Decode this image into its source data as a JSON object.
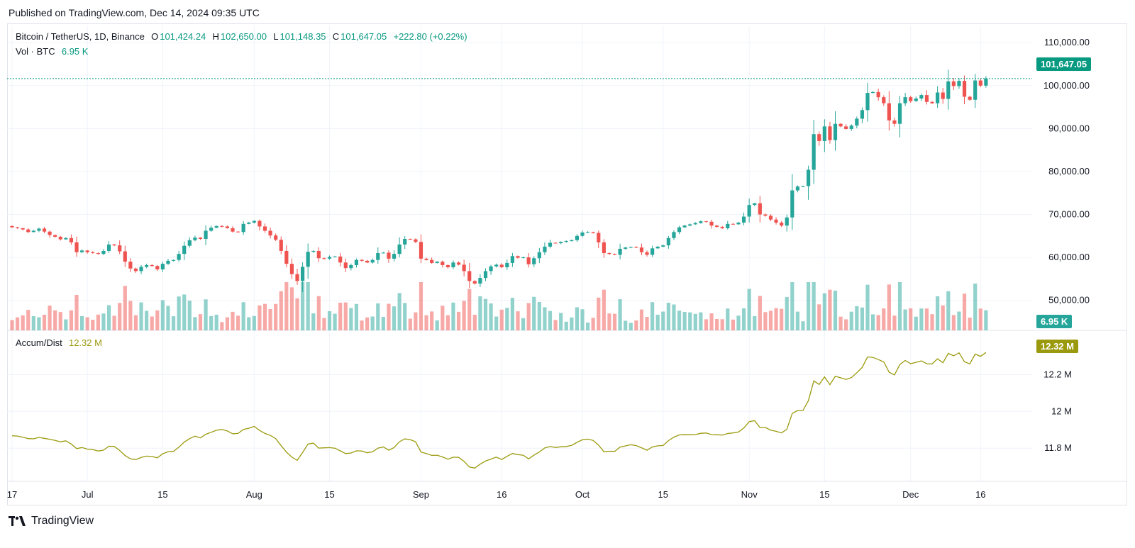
{
  "header": {
    "published": "Published on TradingView.com, Dec 14, 2024 09:35 UTC"
  },
  "legend": {
    "symbol": "Bitcoin / TetherUS, 1D, Binance",
    "o_label": "O",
    "o_value": "101,424.24",
    "h_label": "H",
    "h_value": "102,650.00",
    "l_label": "L",
    "l_value": "101,148.35",
    "c_label": "C",
    "c_value": "101,647.05",
    "change": "+222.80 (+0.22%)",
    "vol_label": "Vol · BTC",
    "vol_value": "6.95 K",
    "ad_label": "Accum/Dist",
    "ad_value": "12.32 M"
  },
  "tags": {
    "price": "101,647.05",
    "volume": "6.95 K",
    "ad": "12.32 M"
  },
  "footer": {
    "brand": "TradingView"
  },
  "colors": {
    "up": "#26a69a",
    "down": "#ef5350",
    "ad_line": "#9b9a0e",
    "grid": "#f0f3fa"
  },
  "chart_data": [
    {
      "type": "candlestick",
      "title": "Bitcoin / TetherUS, 1D, Binance",
      "price_axis_ticks": [
        "110,000.00",
        "100,000.00",
        "90,000.00",
        "80,000.00",
        "70,000.00",
        "60,000.00",
        "50,000.00"
      ],
      "price_axis_values": [
        110000,
        100000,
        90000,
        80000,
        70000,
        60000,
        50000
      ],
      "ylim": [
        43000,
        114000
      ],
      "x_ticks": [
        "17",
        "Jul",
        "15",
        "Aug",
        "15",
        "Sep",
        "16",
        "Oct",
        "15",
        "Nov",
        "15",
        "Dec",
        "16"
      ],
      "x_tick_days": [
        0,
        14,
        28,
        45,
        59,
        76,
        91,
        106,
        121,
        137,
        151,
        167,
        180
      ],
      "last_close": 101647.05,
      "closes": [
        67000,
        66800,
        66500,
        65900,
        66200,
        66700,
        66000,
        65200,
        64800,
        64200,
        64500,
        63500,
        61200,
        61600,
        61200,
        61000,
        60800,
        61500,
        63000,
        62800,
        61400,
        59000,
        57400,
        56800,
        57800,
        58200,
        58000,
        57200,
        58500,
        59200,
        59400,
        60800,
        62700,
        64000,
        64600,
        64300,
        66200,
        66900,
        67300,
        67200,
        66800,
        66000,
        65900,
        67800,
        68100,
        68500,
        67200,
        66200,
        65100,
        64100,
        61500,
        58500,
        56100,
        54500,
        57800,
        61300,
        61500,
        59800,
        59700,
        60100,
        60200,
        58800,
        57500,
        58200,
        59400,
        59200,
        58800,
        59400,
        61000,
        61100,
        59700,
        60800,
        63000,
        64300,
        64200,
        63600,
        59700,
        59400,
        58700,
        59000,
        58200,
        57700,
        58800,
        58300,
        56800,
        54500,
        53900,
        55200,
        56800,
        57900,
        58300,
        57700,
        58700,
        60300,
        59900,
        60000,
        58400,
        59800,
        61200,
        62500,
        63400,
        63300,
        63600,
        63800,
        64000,
        65000,
        65800,
        65900,
        65700,
        63500,
        61000,
        60800,
        60600,
        62000,
        62300,
        62400,
        62300,
        61200,
        60600,
        62100,
        62500,
        62800,
        64500,
        65900,
        67000,
        67400,
        67700,
        68000,
        68400,
        68300,
        67400,
        67100,
        66800,
        67800,
        67700,
        68100,
        69500,
        72200,
        72600,
        70000,
        69700,
        68800,
        68100,
        67400,
        69300,
        75600,
        76500,
        76600,
        80400,
        88700,
        87100,
        90500,
        87300,
        91100,
        90500,
        89900,
        90700,
        92300,
        94300,
        98300,
        98500,
        97300,
        95900,
        91900,
        91100,
        95900,
        97300,
        96400,
        97000,
        97800,
        96200,
        95900,
        98400,
        96900,
        101000,
        99900,
        101100,
        97400,
        96700,
        101200,
        100000,
        101647
      ]
    },
    {
      "type": "bar",
      "title": "Vol · BTC",
      "last_value": "6.95 K"
    },
    {
      "type": "line",
      "title": "Accum/Dist",
      "axis_ticks": [
        "12.2 M",
        "12 M",
        "11.8 M"
      ],
      "axis_values": [
        12.2,
        12.0,
        11.8
      ],
      "ylim": [
        11.62,
        12.44
      ],
      "last_value": 12.32
    }
  ]
}
